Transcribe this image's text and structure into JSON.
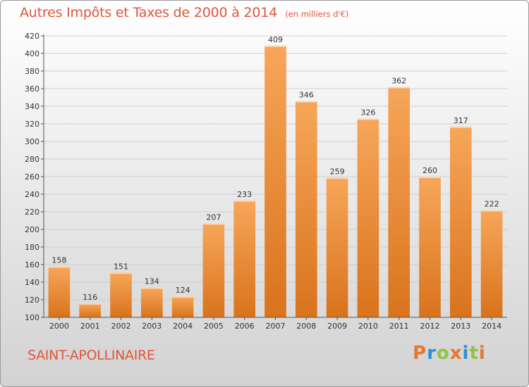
{
  "header": {
    "title": "Autres Impôts et Taxes de 2000 à 2014",
    "subtitle": "(en milliers d'€)"
  },
  "footer": {
    "commune": "SAINT-APOLLINAIRE",
    "brand_letters": [
      "P",
      "r",
      "o",
      "x",
      "i",
      "t",
      "i"
    ],
    "brand_colors": [
      "#e8772e",
      "#2e8fd6",
      "#8dc63f",
      "#e8772e",
      "#2e8fd6",
      "#8dc63f",
      "#e8772e"
    ]
  },
  "colors": {
    "bar_light": "#f7a65a",
    "bar_dark": "#d9731c",
    "title": "#e0553a",
    "grid": "#cfcfcf",
    "text": "#333333"
  },
  "chart_data": {
    "type": "bar",
    "categories": [
      "2000",
      "2001",
      "2002",
      "2003",
      "2004",
      "2005",
      "2006",
      "2007",
      "2008",
      "2009",
      "2010",
      "2011",
      "2012",
      "2013",
      "2014"
    ],
    "values": [
      158,
      116,
      151,
      134,
      124,
      207,
      233,
      409,
      346,
      259,
      326,
      362,
      260,
      317,
      222
    ],
    "ylim": [
      100,
      420
    ],
    "yticks": [
      100,
      120,
      140,
      160,
      180,
      200,
      220,
      240,
      260,
      280,
      300,
      320,
      340,
      360,
      380,
      400,
      420
    ],
    "grid": true,
    "data_labels": true
  }
}
